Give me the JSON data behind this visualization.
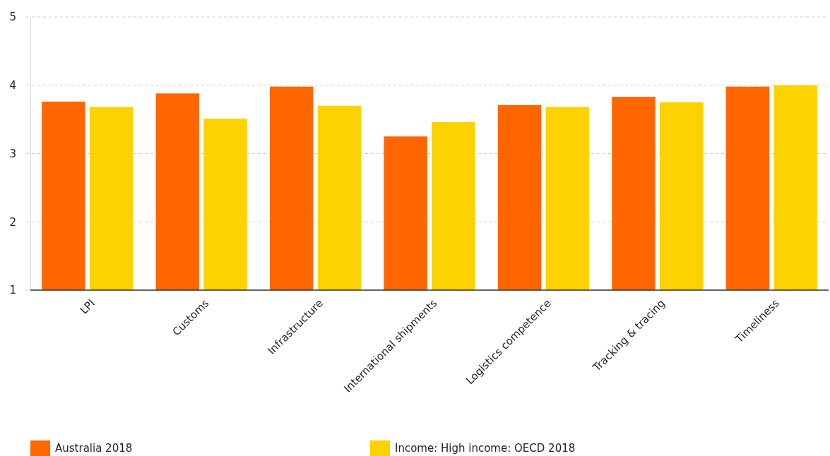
{
  "chart_data": {
    "type": "bar",
    "categories": [
      "LPI",
      "Customs",
      "Infrastructure",
      "International shipments",
      "Logistics competence",
      "Tracking & tracing",
      "Timeliness"
    ],
    "series": [
      {
        "name": "Australia 2018",
        "color": "#ff6600",
        "values": [
          3.76,
          3.88,
          3.98,
          3.25,
          3.71,
          3.83,
          3.98
        ]
      },
      {
        "name": "Income: High income: OECD 2018",
        "color": "#fcd200",
        "values": [
          3.68,
          3.51,
          3.7,
          3.46,
          3.68,
          3.75,
          4.0
        ]
      }
    ],
    "ylim": [
      1,
      5
    ],
    "yticks": [
      1,
      2,
      3,
      4,
      5
    ],
    "grid": "y",
    "legend": "bottom"
  }
}
